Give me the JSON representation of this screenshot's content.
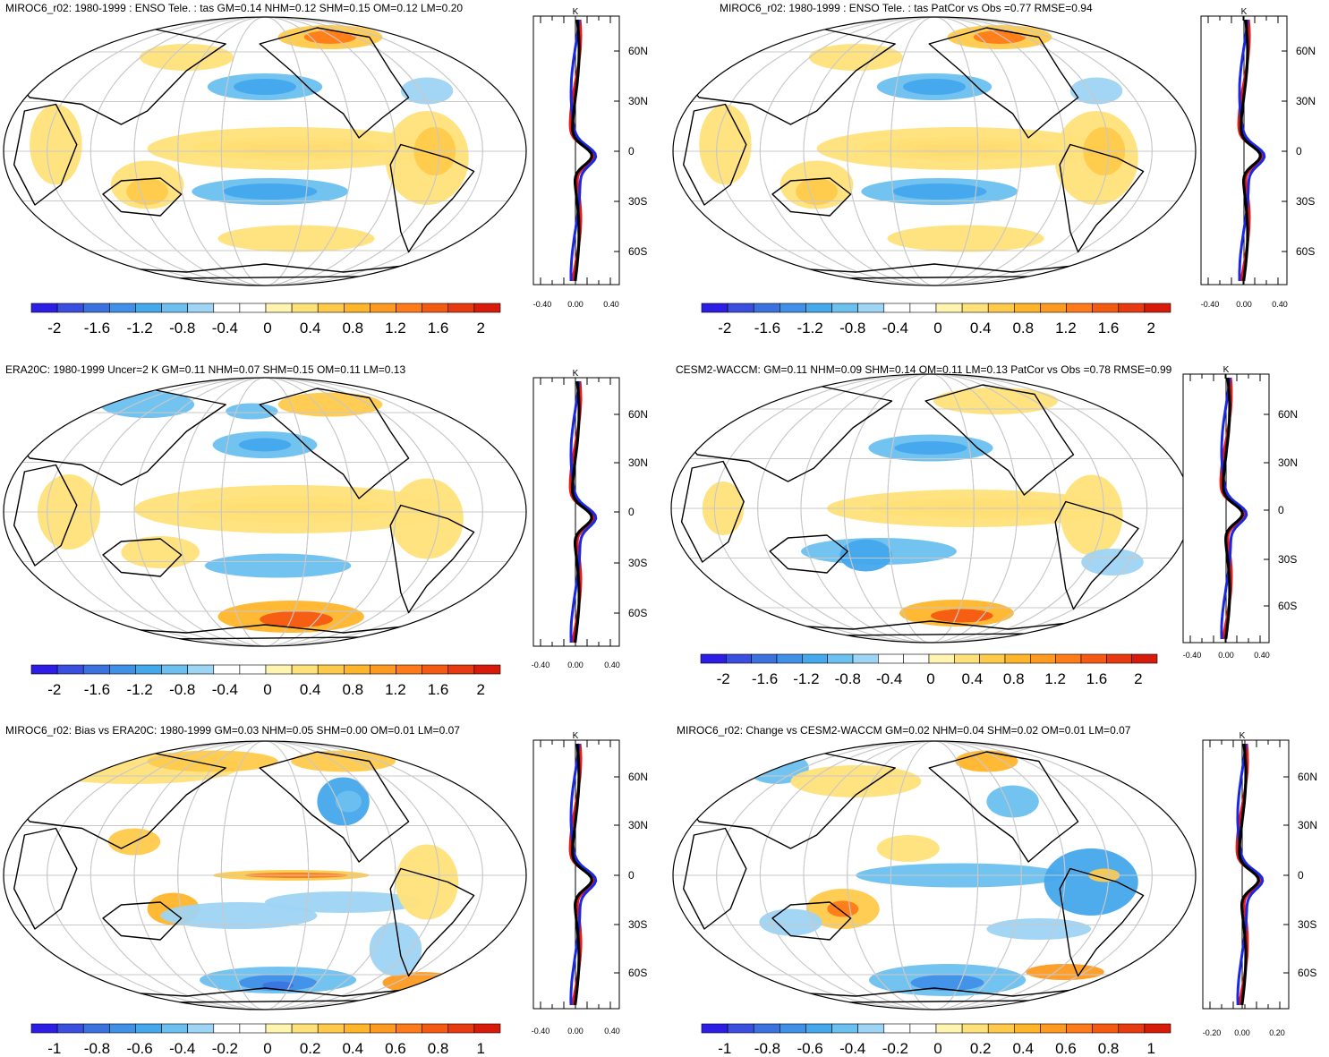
{
  "colors": {
    "neg": [
      "#2d1ee6",
      "#3a4fe0",
      "#3c72e0",
      "#4090e8",
      "#44a8ec",
      "#6cc0f0",
      "#9ed4f4"
    ],
    "pos": [
      "#fff5b0",
      "#ffe17a",
      "#ffca4a",
      "#ffb52a",
      "#ff9a20",
      "#ff7a18",
      "#f55a12",
      "#e83a10",
      "#d81a0a"
    ],
    "obs_line": "#000000",
    "model_line_red": "#e81a1a",
    "model_line_blue": "#1a28e6"
  },
  "panels": [
    {
      "title": "MIROC6_r02: 1980-1999 : ENSO Tele. : tas GM=0.14 NHM=0.12 SHM=0.15 OM=0.12 LM=0.20",
      "colorbar_labels": [
        "-2",
        "-1.6",
        "-1.2",
        "-0.8",
        "-0.4",
        "0",
        "0.4",
        "0.8",
        "1.2",
        "1.6",
        "2"
      ],
      "zonal_unit": "K",
      "zonal_lat_labels": [
        "60N",
        "30N",
        "0",
        "30S",
        "60S"
      ],
      "zonal_x_labels": [
        "-0.40",
        "0.00",
        "0.40"
      ]
    },
    {
      "title": "MIROC6_r02: 1980-1999 : ENSO Tele. : tas PatCor vs Obs =0.77 RMSE=0.94",
      "colorbar_labels": [
        "-2",
        "-1.6",
        "-1.2",
        "-0.8",
        "-0.4",
        "0",
        "0.4",
        "0.8",
        "1.2",
        "1.6",
        "2"
      ],
      "zonal_unit": "K",
      "zonal_lat_labels": [
        "60N",
        "30N",
        "0",
        "30S",
        "60S"
      ],
      "zonal_x_labels": [
        "-0.40",
        "0.00",
        "0.40"
      ]
    },
    {
      "title": "ERA20C: 1980-1999 Uncer=2 K GM=0.11 NHM=0.07 SHM=0.15 OM=0.11 LM=0.13",
      "colorbar_labels": [
        "-2",
        "-1.6",
        "-1.2",
        "-0.8",
        "-0.4",
        "0",
        "0.4",
        "0.8",
        "1.2",
        "1.6",
        "2"
      ],
      "zonal_unit": "K",
      "zonal_lat_labels": [
        "60N",
        "30N",
        "0",
        "30S",
        "60S"
      ],
      "zonal_x_labels": [
        "-0.40",
        "0.00",
        "0.40"
      ]
    },
    {
      "title": "CESM2-WACCM: GM=0.11 NHM=0.09 SHM=0.14 OM=0.11 LM=0.13 PatCor vs Obs =0.78 RMSE=0.99",
      "colorbar_labels": [
        "-2",
        "-1.6",
        "-1.2",
        "-0.8",
        "-0.4",
        "0",
        "0.4",
        "0.8",
        "1.2",
        "1.6",
        "2"
      ],
      "zonal_unit": "K",
      "zonal_lat_labels": [
        "60N",
        "30N",
        "0",
        "30S",
        "60S"
      ],
      "zonal_x_labels": [
        "-0.40",
        "0.00",
        "0.40"
      ]
    },
    {
      "title": "MIROC6_r02: Bias vs ERA20C: 1980-1999 GM=0.03 NHM=0.05 SHM=0.00 OM=0.01 LM=0.07",
      "colorbar_labels": [
        "-1",
        "-0.8",
        "-0.6",
        "-0.4",
        "-0.2",
        "0",
        "0.2",
        "0.4",
        "0.6",
        "0.8",
        "1"
      ],
      "zonal_unit": "K",
      "zonal_lat_labels": [
        "60N",
        "30N",
        "0",
        "30S",
        "60S"
      ],
      "zonal_x_labels": [
        "-0.40",
        "0.00",
        "0.40"
      ]
    },
    {
      "title": "MIROC6_r02: Change vs CESM2-WACCM GM=0.02 NHM=0.04 SHM=0.02 OM=0.01 LM=0.07",
      "colorbar_labels": [
        "-1",
        "-0.8",
        "-0.6",
        "-0.4",
        "-0.2",
        "0",
        "0.2",
        "0.4",
        "0.6",
        "0.8",
        "1"
      ],
      "zonal_unit": "K",
      "zonal_lat_labels": [
        "60N",
        "30N",
        "0",
        "30S",
        "60S"
      ],
      "zonal_x_labels": [
        "-0.20",
        "0.00",
        "0.20"
      ]
    }
  ]
}
